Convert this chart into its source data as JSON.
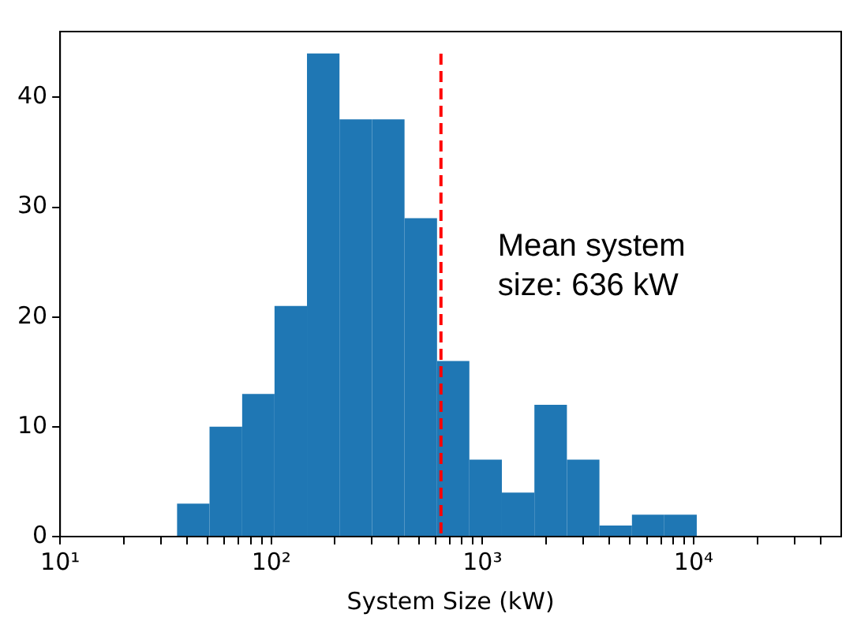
{
  "chart_data": {
    "type": "histogram",
    "xlabel": "System Size (kW)",
    "bins": [
      35.8,
      51.0,
      72.8,
      103.6,
      147.6,
      210.4,
      299.9,
      427.6,
      609.5,
      867,
      1236,
      1762,
      2512,
      3581,
      5105,
      7261,
      10350
    ],
    "values": [
      3,
      10,
      13,
      21,
      44,
      38,
      38,
      29,
      16,
      7,
      4,
      12,
      7,
      1,
      2,
      2
    ],
    "color": "#1f77b4",
    "log": "x",
    "xlim": [
      10,
      50000
    ],
    "xticks": [
      {
        "value": 10,
        "label": "10¹"
      },
      {
        "value": 20,
        "label": null
      },
      {
        "value": 30,
        "label": null
      },
      {
        "value": 40,
        "label": null
      },
      {
        "value": 50,
        "label": null
      },
      {
        "value": 60,
        "label": null
      },
      {
        "value": 70,
        "label": null
      },
      {
        "value": 80,
        "label": null
      },
      {
        "value": 90,
        "label": null
      },
      {
        "value": 100,
        "label": "10²"
      },
      {
        "value": 200,
        "label": null
      },
      {
        "value": 300,
        "label": null
      },
      {
        "value": 400,
        "label": null
      },
      {
        "value": 500,
        "label": null
      },
      {
        "value": 600,
        "label": null
      },
      {
        "value": 700,
        "label": null
      },
      {
        "value": 800,
        "label": null
      },
      {
        "value": 900,
        "label": null
      },
      {
        "value": 1000,
        "label": "10³"
      },
      {
        "value": 2000,
        "label": null
      },
      {
        "value": 3000,
        "label": null
      },
      {
        "value": 4000,
        "label": null
      },
      {
        "value": 5000,
        "label": null
      },
      {
        "value": 6000,
        "label": null
      },
      {
        "value": 7000,
        "label": null
      },
      {
        "value": 8000,
        "label": null
      },
      {
        "value": 9000,
        "label": null
      },
      {
        "value": 10000,
        "label": "10⁴"
      },
      {
        "value": 20000,
        "label": null
      },
      {
        "value": 30000,
        "label": null
      },
      {
        "value": 40000,
        "label": null
      }
    ],
    "ylim": [
      0,
      46
    ],
    "yticks": [
      0,
      10,
      20,
      30,
      40
    ],
    "grid": false,
    "legend": false,
    "ref_lines": [
      {
        "axis": "x",
        "value": 636,
        "label": "Mean system size: 636 kW",
        "color": "#ff0000",
        "line_style": "dashed"
      }
    ]
  }
}
